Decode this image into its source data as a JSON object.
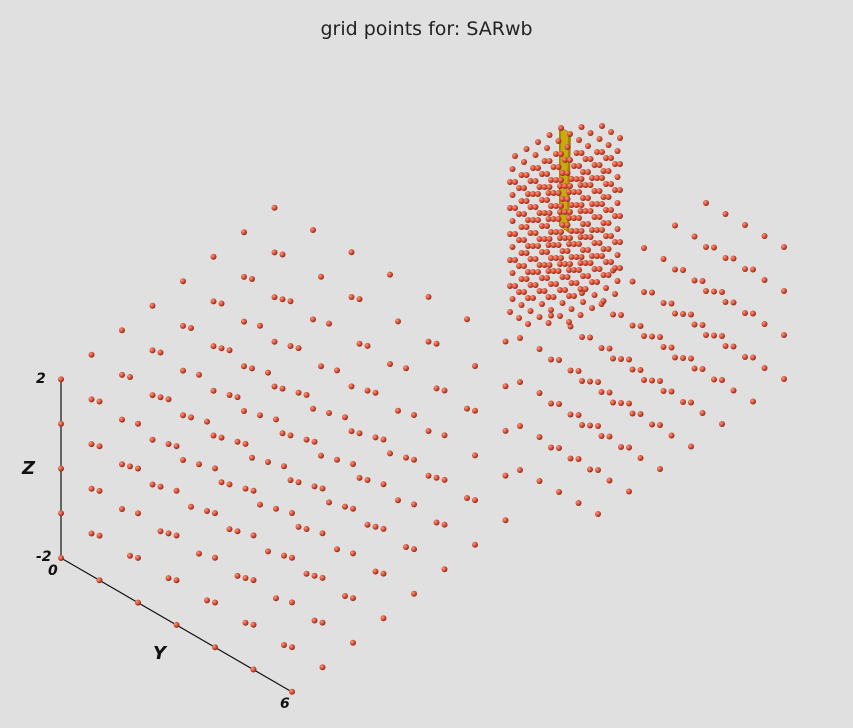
{
  "title": "grid points for: SARwb",
  "axes": {
    "z_label": "Z",
    "y_label": "Y",
    "z_max_label": "2",
    "z_min_label": "-2",
    "y_min_label": "0",
    "y_max_label": "6"
  },
  "colors": {
    "background": "#e0e0e0",
    "point": "#d9533a",
    "box": "#b0980a",
    "axis": "#111111"
  }
}
